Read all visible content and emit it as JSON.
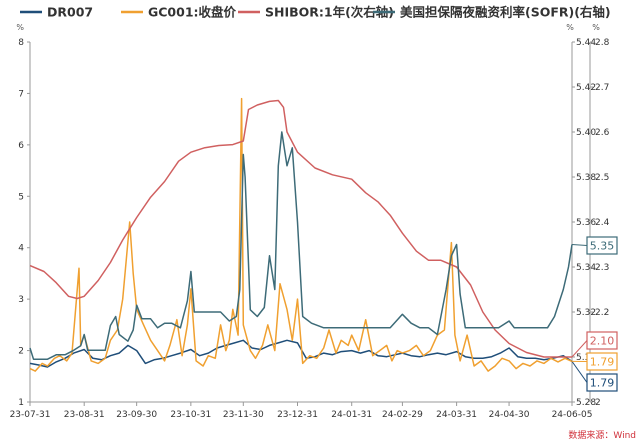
{
  "chart_data": {
    "type": "line",
    "x_ticks": [
      "23-07-31",
      "23-08-31",
      "23-09-30",
      "23-10-31",
      "23-11-30",
      "23-12-31",
      "24-01-31",
      "24-02-29",
      "24-03-31",
      "24-04-30",
      "24-06-05"
    ],
    "left_axis": {
      "unit": "%",
      "ticks": [
        "1",
        "2",
        "3",
        "4",
        "5",
        "6",
        "7",
        "8"
      ],
      "ylim": [
        1,
        8
      ]
    },
    "right_axis_1": {
      "unit": "%",
      "ticks": [
        "5.28",
        "5.30",
        "5.32",
        "5.34",
        "5.36",
        "5.38",
        "5.40",
        "5.42",
        "5.44"
      ],
      "ylim": [
        5.28,
        5.44
      ]
    },
    "right_axis_2": {
      "unit": "%",
      "ticks": [
        "2",
        "2.1",
        "2.2",
        "2.3",
        "2.4",
        "2.5",
        "2.6",
        "2.7",
        "2.8"
      ],
      "ylim": [
        2.0,
        2.8
      ]
    },
    "grid": false,
    "legend_position": "top",
    "series": [
      {
        "name": "DR007",
        "axis": "left",
        "color": "#1f4e79",
        "end_label": "1.79",
        "points": [
          [
            "23-07-31",
            1.75
          ],
          [
            "23-08-05",
            1.72
          ],
          [
            "23-08-10",
            1.68
          ],
          [
            "23-08-15",
            1.78
          ],
          [
            "23-08-20",
            1.85
          ],
          [
            "23-08-25",
            1.95
          ],
          [
            "23-08-31",
            2.02
          ],
          [
            "23-09-05",
            1.85
          ],
          [
            "23-09-10",
            1.82
          ],
          [
            "23-09-15",
            1.9
          ],
          [
            "23-09-20",
            1.95
          ],
          [
            "23-09-25",
            2.1
          ],
          [
            "23-09-30",
            2.0
          ],
          [
            "23-10-05",
            1.75
          ],
          [
            "23-10-10",
            1.82
          ],
          [
            "23-10-15",
            1.85
          ],
          [
            "23-10-20",
            1.9
          ],
          [
            "23-10-25",
            1.95
          ],
          [
            "23-10-31",
            2.02
          ],
          [
            "23-11-05",
            1.9
          ],
          [
            "23-11-10",
            1.95
          ],
          [
            "23-11-15",
            2.05
          ],
          [
            "23-11-20",
            2.1
          ],
          [
            "23-11-25",
            2.15
          ],
          [
            "23-11-30",
            2.2
          ],
          [
            "23-12-05",
            2.05
          ],
          [
            "23-12-10",
            2.02
          ],
          [
            "23-12-15",
            2.1
          ],
          [
            "23-12-20",
            2.15
          ],
          [
            "23-12-25",
            2.2
          ],
          [
            "23-12-31",
            2.15
          ],
          [
            "24-01-05",
            1.85
          ],
          [
            "24-01-10",
            1.88
          ],
          [
            "24-01-15",
            1.95
          ],
          [
            "24-01-20",
            1.92
          ],
          [
            "24-01-25",
            1.98
          ],
          [
            "24-01-31",
            2.0
          ],
          [
            "24-02-05",
            1.95
          ],
          [
            "24-02-10",
            2.0
          ],
          [
            "24-02-15",
            1.9
          ],
          [
            "24-02-20",
            1.88
          ],
          [
            "24-02-25",
            1.92
          ],
          [
            "24-02-29",
            1.95
          ],
          [
            "24-03-05",
            1.9
          ],
          [
            "24-03-10",
            1.88
          ],
          [
            "24-03-15",
            1.92
          ],
          [
            "24-03-20",
            1.95
          ],
          [
            "24-03-25",
            1.92
          ],
          [
            "24-03-31",
            1.98
          ],
          [
            "24-04-05",
            1.88
          ],
          [
            "24-04-10",
            1.85
          ],
          [
            "24-04-15",
            1.85
          ],
          [
            "24-04-20",
            1.88
          ],
          [
            "24-04-25",
            1.95
          ],
          [
            "24-04-30",
            2.05
          ],
          [
            "24-05-05",
            1.88
          ],
          [
            "24-05-10",
            1.85
          ],
          [
            "24-05-15",
            1.85
          ],
          [
            "24-05-20",
            1.82
          ],
          [
            "24-05-25",
            1.85
          ],
          [
            "24-05-31",
            1.9
          ],
          [
            "24-06-05",
            1.79
          ]
        ]
      },
      {
        "name": "GC001:收盘价",
        "axis": "left",
        "color": "#f0a030",
        "end_label": "1.79",
        "points": [
          [
            "23-07-31",
            1.65
          ],
          [
            "23-08-03",
            1.6
          ],
          [
            "23-08-07",
            1.75
          ],
          [
            "23-08-10",
            1.7
          ],
          [
            "23-08-14",
            1.85
          ],
          [
            "23-08-17",
            1.9
          ],
          [
            "23-08-21",
            1.8
          ],
          [
            "23-08-24",
            1.95
          ],
          [
            "23-08-28",
            3.6
          ],
          [
            "23-08-29",
            2.1
          ],
          [
            "23-08-31",
            2.3
          ],
          [
            "23-09-04",
            1.8
          ],
          [
            "23-09-08",
            1.75
          ],
          [
            "23-09-12",
            1.85
          ],
          [
            "23-09-15",
            2.2
          ],
          [
            "23-09-19",
            2.4
          ],
          [
            "23-09-22",
            3.0
          ],
          [
            "23-09-26",
            4.5
          ],
          [
            "23-09-28",
            3.5
          ],
          [
            "23-09-30",
            2.8
          ],
          [
            "23-10-04",
            2.5
          ],
          [
            "23-10-08",
            2.2
          ],
          [
            "23-10-12",
            2.0
          ],
          [
            "23-10-16",
            1.8
          ],
          [
            "23-10-19",
            2.1
          ],
          [
            "23-10-23",
            2.6
          ],
          [
            "23-10-26",
            1.9
          ],
          [
            "23-10-29",
            2.5
          ],
          [
            "23-10-31",
            3.2
          ],
          [
            "23-11-03",
            1.8
          ],
          [
            "23-11-07",
            1.7
          ],
          [
            "23-11-10",
            1.9
          ],
          [
            "23-11-14",
            1.85
          ],
          [
            "23-11-17",
            2.5
          ],
          [
            "23-11-20",
            2.0
          ],
          [
            "23-11-22",
            2.2
          ],
          [
            "23-11-24",
            2.8
          ],
          [
            "23-11-27",
            2.3
          ],
          [
            "23-11-29",
            6.9
          ],
          [
            "23-11-30",
            2.5
          ],
          [
            "23-12-04",
            2.0
          ],
          [
            "23-12-07",
            1.85
          ],
          [
            "23-12-11",
            2.1
          ],
          [
            "23-12-14",
            2.5
          ],
          [
            "23-12-18",
            2.0
          ],
          [
            "23-12-21",
            3.3
          ],
          [
            "23-12-25",
            2.8
          ],
          [
            "23-12-28",
            2.2
          ],
          [
            "23-12-31",
            3.0
          ],
          [
            "24-01-03",
            1.75
          ],
          [
            "24-01-07",
            1.9
          ],
          [
            "24-01-11",
            1.85
          ],
          [
            "24-01-15",
            2.05
          ],
          [
            "24-01-18",
            2.4
          ],
          [
            "24-01-22",
            1.95
          ],
          [
            "24-01-25",
            2.2
          ],
          [
            "24-01-29",
            2.1
          ],
          [
            "24-01-31",
            2.3
          ],
          [
            "24-02-04",
            2.0
          ],
          [
            "24-02-08",
            2.6
          ],
          [
            "24-02-12",
            1.9
          ],
          [
            "24-02-16",
            2.0
          ],
          [
            "24-02-20",
            2.1
          ],
          [
            "24-02-23",
            1.8
          ],
          [
            "24-02-26",
            2.0
          ],
          [
            "24-02-29",
            1.95
          ],
          [
            "24-03-04",
            2.0
          ],
          [
            "24-03-08",
            2.1
          ],
          [
            "24-03-12",
            1.9
          ],
          [
            "24-03-16",
            2.0
          ],
          [
            "24-03-20",
            2.3
          ],
          [
            "24-03-24",
            2.4
          ],
          [
            "24-03-28",
            4.1
          ],
          [
            "24-03-30",
            2.3
          ],
          [
            "24-04-02",
            1.8
          ],
          [
            "24-04-06",
            2.3
          ],
          [
            "24-04-10",
            1.7
          ],
          [
            "24-04-14",
            1.8
          ],
          [
            "24-04-18",
            1.6
          ],
          [
            "24-04-22",
            1.7
          ],
          [
            "24-04-26",
            1.85
          ],
          [
            "24-04-30",
            1.8
          ],
          [
            "24-05-04",
            1.65
          ],
          [
            "24-05-08",
            1.75
          ],
          [
            "24-05-12",
            1.7
          ],
          [
            "24-05-16",
            1.8
          ],
          [
            "24-05-20",
            1.75
          ],
          [
            "24-05-24",
            1.85
          ],
          [
            "24-05-28",
            1.78
          ],
          [
            "24-06-01",
            1.85
          ],
          [
            "24-06-05",
            1.79
          ]
        ]
      },
      {
        "name": "SHIBOR:1年(次右轴)",
        "axis": "right_2",
        "color": "#d06060",
        "end_label": "2.10",
        "points": [
          [
            "23-07-31",
            2.303
          ],
          [
            "23-08-08",
            2.29
          ],
          [
            "23-08-15",
            2.265
          ],
          [
            "23-08-22",
            2.235
          ],
          [
            "23-08-27",
            2.23
          ],
          [
            "23-08-31",
            2.235
          ],
          [
            "23-09-08",
            2.27
          ],
          [
            "23-09-15",
            2.31
          ],
          [
            "23-09-22",
            2.36
          ],
          [
            "23-09-30",
            2.41
          ],
          [
            "23-10-08",
            2.455
          ],
          [
            "23-10-16",
            2.49
          ],
          [
            "23-10-24",
            2.535
          ],
          [
            "23-10-31",
            2.555
          ],
          [
            "23-11-08",
            2.565
          ],
          [
            "23-11-16",
            2.57
          ],
          [
            "23-11-24",
            2.572
          ],
          [
            "23-11-30",
            2.58
          ],
          [
            "23-12-03",
            2.65
          ],
          [
            "23-12-08",
            2.66
          ],
          [
            "23-12-15",
            2.668
          ],
          [
            "23-12-20",
            2.67
          ],
          [
            "23-12-23",
            2.655
          ],
          [
            "23-12-25",
            2.6
          ],
          [
            "23-12-31",
            2.555
          ],
          [
            "24-01-10",
            2.52
          ],
          [
            "24-01-20",
            2.505
          ],
          [
            "24-01-31",
            2.495
          ],
          [
            "24-02-08",
            2.465
          ],
          [
            "24-02-15",
            2.445
          ],
          [
            "24-02-22",
            2.415
          ],
          [
            "24-02-29",
            2.375
          ],
          [
            "24-03-08",
            2.335
          ],
          [
            "24-03-15",
            2.315
          ],
          [
            "24-03-22",
            2.315
          ],
          [
            "24-03-31",
            2.3
          ],
          [
            "24-04-08",
            2.26
          ],
          [
            "24-04-15",
            2.2
          ],
          [
            "24-04-22",
            2.16
          ],
          [
            "24-04-30",
            2.13
          ],
          [
            "24-05-10",
            2.11
          ],
          [
            "24-05-20",
            2.1
          ],
          [
            "24-05-31",
            2.1
          ],
          [
            "24-06-05",
            2.1
          ]
        ]
      },
      {
        "name": "美国担保隔夜融资利率(SOFR)(右轴)",
        "axis": "right_1",
        "color": "#3d6b78",
        "end_label": "5.35",
        "points": [
          [
            "23-07-31",
            5.304
          ],
          [
            "23-08-02",
            5.299
          ],
          [
            "23-08-10",
            5.299
          ],
          [
            "23-08-15",
            5.301
          ],
          [
            "23-08-20",
            5.301
          ],
          [
            "23-08-25",
            5.303
          ],
          [
            "23-08-29",
            5.305
          ],
          [
            "23-08-31",
            5.31
          ],
          [
            "23-09-02",
            5.303
          ],
          [
            "23-09-07",
            5.303
          ],
          [
            "23-09-12",
            5.303
          ],
          [
            "23-09-15",
            5.314
          ],
          [
            "23-09-18",
            5.318
          ],
          [
            "23-09-20",
            5.31
          ],
          [
            "23-09-25",
            5.307
          ],
          [
            "23-09-28",
            5.312
          ],
          [
            "23-09-30",
            5.323
          ],
          [
            "23-10-03",
            5.317
          ],
          [
            "23-10-08",
            5.317
          ],
          [
            "23-10-12",
            5.313
          ],
          [
            "23-10-16",
            5.315
          ],
          [
            "23-10-20",
            5.315
          ],
          [
            "23-10-25",
            5.313
          ],
          [
            "23-10-29",
            5.325
          ],
          [
            "23-10-31",
            5.338
          ],
          [
            "23-11-02",
            5.32
          ],
          [
            "23-11-07",
            5.32
          ],
          [
            "23-11-12",
            5.32
          ],
          [
            "23-11-17",
            5.32
          ],
          [
            "23-11-22",
            5.316
          ],
          [
            "23-11-26",
            5.318
          ],
          [
            "23-11-28",
            5.33
          ],
          [
            "23-11-30",
            5.39
          ],
          [
            "23-12-01",
            5.38
          ],
          [
            "23-12-04",
            5.321
          ],
          [
            "23-12-08",
            5.318
          ],
          [
            "23-12-12",
            5.322
          ],
          [
            "23-12-15",
            5.345
          ],
          [
            "23-12-18",
            5.33
          ],
          [
            "23-12-20",
            5.385
          ],
          [
            "23-12-22",
            5.4
          ],
          [
            "23-12-25",
            5.385
          ],
          [
            "23-12-28",
            5.393
          ],
          [
            "23-12-31",
            5.36
          ],
          [
            "24-01-03",
            5.318
          ],
          [
            "24-01-08",
            5.315
          ],
          [
            "24-01-15",
            5.313
          ],
          [
            "24-01-22",
            5.313
          ],
          [
            "24-01-31",
            5.313
          ],
          [
            "24-02-08",
            5.313
          ],
          [
            "24-02-15",
            5.313
          ],
          [
            "24-02-22",
            5.313
          ],
          [
            "24-02-29",
            5.319
          ],
          [
            "24-03-05",
            5.315
          ],
          [
            "24-03-10",
            5.313
          ],
          [
            "24-03-15",
            5.313
          ],
          [
            "24-03-20",
            5.31
          ],
          [
            "24-03-25",
            5.33
          ],
          [
            "24-03-28",
            5.345
          ],
          [
            "24-03-31",
            5.35
          ],
          [
            "24-04-02",
            5.328
          ],
          [
            "24-04-05",
            5.313
          ],
          [
            "24-04-12",
            5.313
          ],
          [
            "24-04-18",
            5.313
          ],
          [
            "24-04-24",
            5.313
          ],
          [
            "24-04-30",
            5.316
          ],
          [
            "24-05-03",
            5.313
          ],
          [
            "24-05-10",
            5.313
          ],
          [
            "24-05-17",
            5.313
          ],
          [
            "24-05-22",
            5.313
          ],
          [
            "24-05-26",
            5.318
          ],
          [
            "24-05-31",
            5.33
          ],
          [
            "24-06-03",
            5.34
          ],
          [
            "24-06-05",
            5.35
          ]
        ]
      }
    ]
  },
  "source_note": "数据来源：Wind"
}
